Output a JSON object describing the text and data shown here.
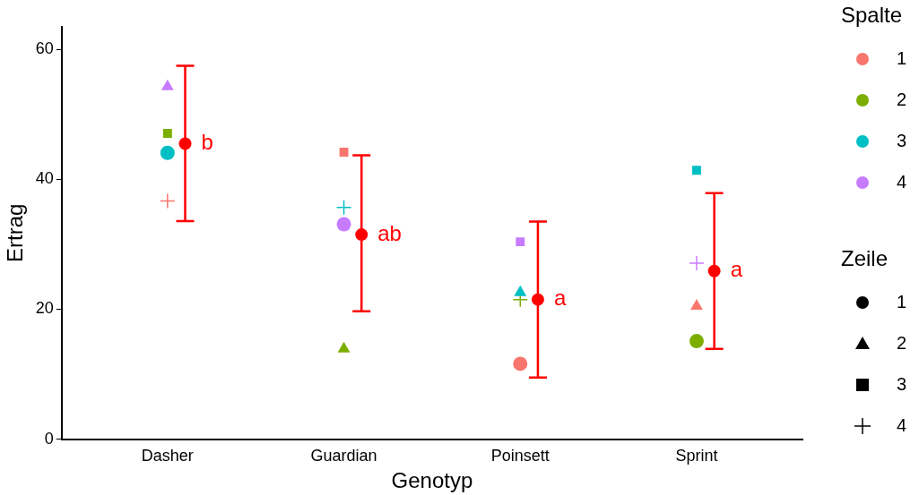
{
  "chart_data": {
    "type": "scatter",
    "xlabel": "Genotyp",
    "ylabel": "Ertrag",
    "categories": [
      "Dasher",
      "Guardian",
      "Poinsett",
      "Sprint"
    ],
    "ylim": [
      0,
      63.5
    ],
    "yticks": [
      0,
      20,
      40,
      60
    ],
    "grid": false,
    "legend": "right",
    "legend_title": "Spalte",
    "annotations": [
      "Zeile",
      "1",
      "2",
      "3",
      "4"
    ],
    "series": [
      {
        "name": "1",
        "color": "#f8766d",
        "marker": "circle",
        "values": [
          null,
          null,
          null,
          null
        ]
      },
      {
        "name": "2",
        "color": "#7cae00",
        "marker": "circle",
        "values": [
          null,
          null,
          null,
          null
        ]
      },
      {
        "name": "3",
        "color": "#00bfc4",
        "marker": "circle",
        "values": [
          null,
          null,
          null,
          null
        ]
      },
      {
        "name": "4",
        "color": "#c77cff",
        "marker": "circle",
        "values": [
          null,
          null,
          null,
          null
        ]
      },
      {
        "color": "#000000",
        "marker": "circle",
        "values": [
          44.1,
          33.1,
          11.6,
          15.1
        ],
        "colors": [
          "#00bfc4",
          "#c77cff",
          "#f8766d",
          "#7cae00"
        ]
      },
      {
        "color": "#000000",
        "marker": "triangle",
        "values": [
          54.3,
          13.9,
          22.6,
          20.5
        ],
        "colors": [
          "#c77cff",
          "#7cae00",
          "#00bfc4",
          "#f8766d"
        ]
      },
      {
        "color": "#000000",
        "marker": "square",
        "values": [
          47.1,
          44.2,
          30.4,
          41.4
        ],
        "colors": [
          "#7cae00",
          "#f8766d",
          "#c77cff",
          "#00bfc4"
        ]
      },
      {
        "color": "#000000",
        "marker": "cross",
        "values": [
          36.7,
          35.7,
          21.5,
          27.1
        ],
        "colors": [
          "#f8766d",
          "#00bfc4",
          "#7cae00",
          "#c77cff"
        ]
      },
      {
        "color": "#ff0000",
        "marker": "circle",
        "values": [
          45.5,
          31.5,
          21.5,
          25.9
        ],
        "errors": [
          [
            33.6,
            57.5
          ],
          [
            19.7,
            43.7
          ],
          [
            9.5,
            33.5
          ],
          [
            13.9,
            37.9
          ]
        ],
        "value_labels": [
          "b",
          "ab",
          "a",
          "a"
        ]
      }
    ]
  }
}
